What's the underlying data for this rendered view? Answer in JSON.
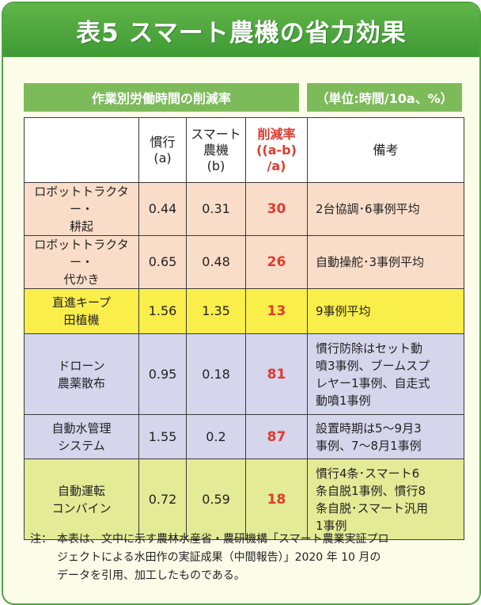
{
  "title": "表5 スマート農機の省力効果",
  "header_left": "作業別労働時間の削減率",
  "header_right": "（単位:時間/10a、%）",
  "columns": {
    "conventional": [
      "慣行",
      "(a)"
    ],
    "smart": [
      "スマート",
      "農機",
      "(b)"
    ],
    "reduction": [
      "削減率",
      "((a-b)",
      "/a)"
    ],
    "remarks": "備考"
  },
  "rows": [
    {
      "name": [
        "ロボットトラクター・",
        "耕起"
      ],
      "a": "0.44",
      "b": "0.31",
      "rate": "30",
      "note": [
        "2台協調･6事例平均"
      ]
    },
    {
      "name": [
        "ロボットトラクター・",
        "代かき"
      ],
      "a": "0.65",
      "b": "0.48",
      "rate": "26",
      "note": [
        "自動操舵･3事例平均"
      ]
    },
    {
      "name": [
        "直進キープ",
        "田植機"
      ],
      "a": "1.56",
      "b": "1.35",
      "rate": "13",
      "note": [
        "9事例平均"
      ]
    },
    {
      "name": [
        "ドローン",
        "農薬散布"
      ],
      "a": "0.95",
      "b": "0.18",
      "rate": "81",
      "note": [
        "慣行防除はセット動",
        "噴3事例、ブームスプ",
        "レヤー1事例、自走式",
        "動噴1事例"
      ]
    },
    {
      "name": [
        "自動水管理",
        "システム"
      ],
      "a": "1.55",
      "b": "0.2",
      "rate": "87",
      "note": [
        "設置時期は5～9月3",
        "事例、7～8月1事例"
      ]
    },
    {
      "name": [
        "自動運転",
        "コンバイン"
      ],
      "a": "0.72",
      "b": "0.59",
      "rate": "18",
      "note": [
        "慣行4条･スマート6",
        "条自脱1事例、慣行8",
        "条自脱･スマート汎用",
        "1事例"
      ]
    }
  ],
  "footnote": {
    "label": "注：",
    "lines": [
      "本表は、文中に示す農林水産省・農研機構「スマート農業実証プロ",
      "ジェクトによる水田作の実証成果（中間報告）」2020 年 10 月の",
      "データを引用、加工したものである。"
    ]
  },
  "colors": {
    "green": "#4da53d",
    "header_green": "#7dbb5a",
    "red": "#e03b2e",
    "peach": "#f9ddc8",
    "yellow": "#faee4b",
    "lavender": "#d5d5ec",
    "olive": "#e3eb96"
  }
}
